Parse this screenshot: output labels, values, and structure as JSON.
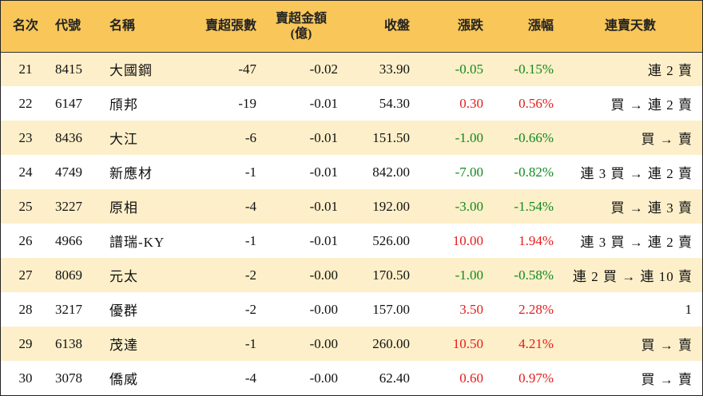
{
  "table": {
    "headers": {
      "rank": "名次",
      "code": "代號",
      "name": "名稱",
      "net_sell_units": "賣超張數",
      "net_sell_amount_line1": "賣超金額",
      "net_sell_amount_line2": "(億)",
      "close": "收盤",
      "change": "漲跌",
      "change_pct": "漲幅",
      "streak": "連賣天數"
    },
    "colors": {
      "header_bg": "#f8c659",
      "odd_row_bg": "#fdefc9",
      "up": "#e51b1b",
      "down": "#0f8a1f"
    },
    "rows": [
      {
        "rank": "21",
        "code": "8415",
        "name": "大國鋼",
        "units": "-47",
        "amount": "-0.02",
        "close": "33.90",
        "change": "-0.05",
        "pct": "-0.15%",
        "direction": "down",
        "streak": "連 2 賣"
      },
      {
        "rank": "22",
        "code": "6147",
        "name": "頎邦",
        "units": "-19",
        "amount": "-0.01",
        "close": "54.30",
        "change": "0.30",
        "pct": "0.56%",
        "direction": "up",
        "streak": "買 → 連 2 賣"
      },
      {
        "rank": "23",
        "code": "8436",
        "name": "大江",
        "units": "-6",
        "amount": "-0.01",
        "close": "151.50",
        "change": "-1.00",
        "pct": "-0.66%",
        "direction": "down",
        "streak": "買 → 賣"
      },
      {
        "rank": "24",
        "code": "4749",
        "name": "新應材",
        "units": "-1",
        "amount": "-0.01",
        "close": "842.00",
        "change": "-7.00",
        "pct": "-0.82%",
        "direction": "down",
        "streak": "連 3 買 → 連 2 賣"
      },
      {
        "rank": "25",
        "code": "3227",
        "name": "原相",
        "units": "-4",
        "amount": "-0.01",
        "close": "192.00",
        "change": "-3.00",
        "pct": "-1.54%",
        "direction": "down",
        "streak": "買 → 連 3 賣"
      },
      {
        "rank": "26",
        "code": "4966",
        "name": "譜瑞-KY",
        "units": "-1",
        "amount": "-0.01",
        "close": "526.00",
        "change": "10.00",
        "pct": "1.94%",
        "direction": "up",
        "streak": "連 3 買 → 連 2 賣"
      },
      {
        "rank": "27",
        "code": "8069",
        "name": "元太",
        "units": "-2",
        "amount": "-0.00",
        "close": "170.50",
        "change": "-1.00",
        "pct": "-0.58%",
        "direction": "down",
        "streak": "連 2 買 → 連 10 賣"
      },
      {
        "rank": "28",
        "code": "3217",
        "name": "優群",
        "units": "-2",
        "amount": "-0.00",
        "close": "157.00",
        "change": "3.50",
        "pct": "2.28%",
        "direction": "up",
        "streak": "1"
      },
      {
        "rank": "29",
        "code": "6138",
        "name": "茂達",
        "units": "-1",
        "amount": "-0.00",
        "close": "260.00",
        "change": "10.50",
        "pct": "4.21%",
        "direction": "up",
        "streak": "買 → 賣"
      },
      {
        "rank": "30",
        "code": "3078",
        "name": "僑威",
        "units": "-4",
        "amount": "-0.00",
        "close": "62.40",
        "change": "0.60",
        "pct": "0.97%",
        "direction": "up",
        "streak": "買 → 賣"
      }
    ]
  }
}
